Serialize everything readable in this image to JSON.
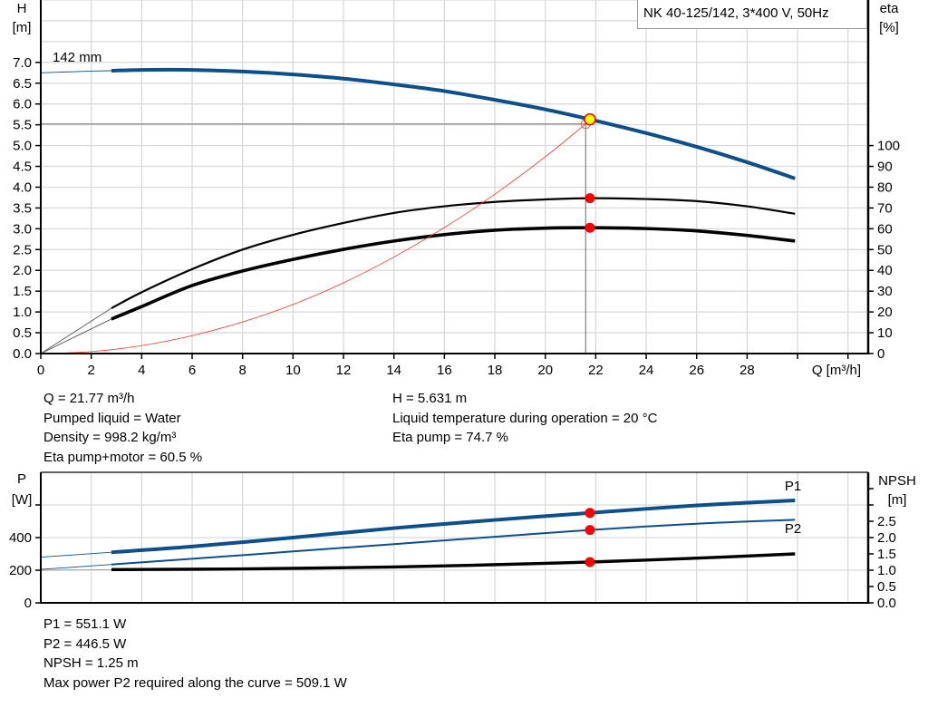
{
  "title": "NK 40-125/142, 3*400 V, 50Hz",
  "info_top": {
    "left": [
      "Q = 21.77 m³/h",
      "Pumped liquid = Water",
      "Density = 998.2 kg/m³",
      "Eta pump+motor = 60.5 %"
    ],
    "right": [
      "H = 5.631 m",
      "Liquid temperature during operation = 20 °C",
      "Eta pump = 74.7 %"
    ]
  },
  "info_bottom": [
    "P1 = 551.1 W",
    "P2 = 446.5 W",
    "NPSH = 1.25 m",
    "Max power P2 required along the curve = 509.1 W"
  ],
  "colors": {
    "head": "#0d4f8b",
    "efficiency": "#000000",
    "system": "#ff3030",
    "marker": "#ff0000",
    "duty_point": "#ffff00",
    "grid": "#d9d9d9"
  },
  "chart_data": [
    {
      "type": "line",
      "xlabel": "Q [m³/h]",
      "ylabel": [
        "H",
        "[m]"
      ],
      "y2label": [
        "eta",
        "[%]"
      ],
      "xlim": [
        0,
        32.8
      ],
      "ylim": [
        0,
        8.5
      ],
      "y2lim": [
        0,
        170
      ],
      "grid": true,
      "xticks": [
        "0",
        "2",
        "4",
        "6",
        "8",
        "10",
        "12",
        "14",
        "16",
        "18",
        "20",
        "22",
        "24",
        "26",
        "28"
      ],
      "yticks": [
        "0.0",
        "0.5",
        "1.0",
        "1.5",
        "2.0",
        "2.5",
        "3.0",
        "3.5",
        "4.0",
        "4.5",
        "5.0",
        "5.5",
        "6.0",
        "6.5",
        "7.0"
      ],
      "y2ticks": [
        "0",
        "10",
        "20",
        "30",
        "40",
        "50",
        "60",
        "70",
        "80",
        "90",
        "100"
      ],
      "series": [
        {
          "name": "142 mm",
          "axis": "y",
          "color": "#0d4f8b",
          "width": 4,
          "extension": [
            [
              0,
              6.75
            ],
            [
              1,
              6.77
            ],
            [
              2,
              6.79
            ],
            [
              2.8,
              6.8
            ]
          ],
          "points": [
            [
              2.8,
              6.8
            ],
            [
              4,
              6.82
            ],
            [
              6,
              6.82
            ],
            [
              8,
              6.78
            ],
            [
              10,
              6.71
            ],
            [
              12,
              6.61
            ],
            [
              14,
              6.47
            ],
            [
              16,
              6.31
            ],
            [
              18,
              6.1
            ],
            [
              20,
              5.87
            ],
            [
              21.77,
              5.631
            ],
            [
              24,
              5.3
            ],
            [
              26,
              4.97
            ],
            [
              28,
              4.6
            ],
            [
              29.9,
              4.21
            ]
          ]
        },
        {
          "axis": "y2",
          "color": "#000000",
          "width": 2.2,
          "extension": [
            [
              0,
              0
            ],
            [
              2.8,
              21.8
            ]
          ],
          "points": [
            [
              2.8,
              21.8
            ],
            [
              4,
              29.5
            ],
            [
              6,
              40.6
            ],
            [
              8,
              50
            ],
            [
              10,
              57.1
            ],
            [
              12,
              62.8
            ],
            [
              14,
              67.6
            ],
            [
              16,
              70.8
            ],
            [
              18,
              72.9
            ],
            [
              20,
              74.1
            ],
            [
              21.77,
              74.7
            ],
            [
              24,
              74.3
            ],
            [
              26,
              73.3
            ],
            [
              28,
              70.8
            ],
            [
              29.9,
              67.2
            ]
          ]
        },
        {
          "axis": "y2",
          "color": "#000000",
          "width": 3.6,
          "extension": [
            [
              0,
              0
            ],
            [
              2.8,
              16.6
            ]
          ],
          "points": [
            [
              2.8,
              16.6
            ],
            [
              4,
              22.6
            ],
            [
              6,
              32.7
            ],
            [
              8,
              39.7
            ],
            [
              10,
              45.3
            ],
            [
              12,
              50.1
            ],
            [
              14,
              54.1
            ],
            [
              16,
              57.2
            ],
            [
              18,
              59.3
            ],
            [
              20,
              60.3
            ],
            [
              21.77,
              60.5
            ],
            [
              24,
              60.1
            ],
            [
              26,
              59.0
            ],
            [
              28,
              56.8
            ],
            [
              29.9,
              54.1
            ]
          ]
        },
        {
          "axis": "y",
          "color": "#ff3030",
          "width": 0.8,
          "points": [
            [
              0,
              0
            ],
            [
              2,
              0.047
            ],
            [
              4,
              0.19
            ],
            [
              6,
              0.43
            ],
            [
              8,
              0.76
            ],
            [
              10,
              1.18
            ],
            [
              12,
              1.7
            ],
            [
              14,
              2.32
            ],
            [
              16,
              3.03
            ],
            [
              18,
              3.83
            ],
            [
              20,
              4.73
            ],
            [
              21.6,
              5.52
            ]
          ]
        }
      ],
      "operating_point": {
        "Q": 21.77,
        "H": 5.631,
        "eta_pump": 74.7,
        "eta_pump_motor": 60.5
      },
      "system_intersection": {
        "Q": 21.6,
        "H": 5.52
      }
    },
    {
      "type": "line",
      "ylabel": [
        "P",
        "[W]"
      ],
      "y2label": [
        "NPSH",
        "[m]"
      ],
      "xlim": [
        0,
        32.8
      ],
      "ylim": [
        0,
        800
      ],
      "y2lim": [
        0,
        4.0
      ],
      "grid": true,
      "yticks": [
        "0",
        "200",
        "400"
      ],
      "y2ticks": [
        "0.0",
        "0.5",
        "1.0",
        "1.5",
        "2.0",
        "2.5"
      ],
      "series": [
        {
          "name": "P1",
          "axis": "y",
          "color": "#0d4f8b",
          "width": 4,
          "extension": [
            [
              0,
              280
            ],
            [
              2.8,
              310
            ]
          ],
          "points": [
            [
              2.8,
              310
            ],
            [
              6,
              345
            ],
            [
              10,
              400
            ],
            [
              14,
              458
            ],
            [
              18,
              508
            ],
            [
              21.77,
              551.1
            ],
            [
              26,
              597
            ],
            [
              29.9,
              628
            ]
          ]
        },
        {
          "name": "P2",
          "axis": "y",
          "color": "#0d4f8b",
          "width": 2,
          "extension": [
            [
              0,
              205
            ],
            [
              2.8,
              235
            ]
          ],
          "points": [
            [
              2.8,
              235
            ],
            [
              6,
              270
            ],
            [
              10,
              315
            ],
            [
              14,
              360
            ],
            [
              18,
              405
            ],
            [
              21.77,
              446.5
            ],
            [
              26,
              485
            ],
            [
              29.9,
              509.1
            ]
          ]
        },
        {
          "axis": "y2",
          "color": "#000000",
          "width": 3.4,
          "extension": [
            [
              0,
              1.0
            ],
            [
              2.8,
              1.02
            ]
          ],
          "points": [
            [
              2.8,
              1.02
            ],
            [
              8,
              1.04
            ],
            [
              14,
              1.1
            ],
            [
              18,
              1.17
            ],
            [
              21.77,
              1.25
            ],
            [
              26,
              1.37
            ],
            [
              29.9,
              1.5
            ]
          ]
        }
      ],
      "operating_point": {
        "Q": 21.77,
        "P1": 551.1,
        "P2": 446.5,
        "NPSH": 1.25
      }
    }
  ]
}
